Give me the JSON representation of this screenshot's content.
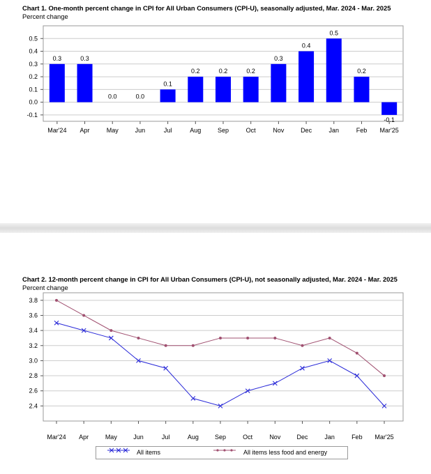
{
  "charts": {
    "c1": {
      "title": "Chart 1. One-month percent change in CPI for All Urban Consumers (CPI-U), seasonally adjusted, Mar. 2024 - Mar. 2025",
      "ylabel": "Percent change"
    },
    "c2": {
      "title": "Chart 2. 12-month percent change in CPI for All Urban Consumers (CPI-U), not seasonally adjusted, Mar. 2024 - Mar. 2025",
      "ylabel": "Percent change",
      "legend": [
        "All items",
        "All items less food and energy"
      ]
    }
  },
  "chart_data": [
    {
      "type": "bar",
      "title": "Chart 1. One-month percent change in CPI for All Urban Consumers (CPI-U), seasonally adjusted, Mar. 2024 - Mar. 2025",
      "ylabel": "Percent change",
      "categories": [
        "Mar'24",
        "Apr",
        "May",
        "Jun",
        "Jul",
        "Aug",
        "Sep",
        "Oct",
        "Nov",
        "Dec",
        "Jan",
        "Feb",
        "Mar'25"
      ],
      "values": [
        0.3,
        0.3,
        0.0,
        0.0,
        0.1,
        0.2,
        0.2,
        0.2,
        0.3,
        0.4,
        0.5,
        0.2,
        -0.1
      ],
      "data_labels": [
        "0.3",
        "0.3",
        "0.0",
        "0.0",
        "0.1",
        "0.2",
        "0.2",
        "0.2",
        "0.3",
        "0.4",
        "0.5",
        "0.2",
        "-0.1"
      ],
      "yticks": [
        "0.5",
        "0.4",
        "0.3",
        "0.2",
        "0.1",
        "0.0",
        "-0.1"
      ],
      "ylim": [
        -0.15,
        0.6
      ],
      "grid": true,
      "bar_color": "#0000ff"
    },
    {
      "type": "line",
      "title": "Chart 2. 12-month percent change in CPI for All Urban Consumers (CPI-U), not seasonally adjusted, Mar. 2024 - Mar. 2025",
      "ylabel": "Percent change",
      "categories": [
        "Mar'24",
        "Apr",
        "May",
        "Jun",
        "Jul",
        "Aug",
        "Sep",
        "Oct",
        "Nov",
        "Dec",
        "Jan",
        "Feb",
        "Mar'25"
      ],
      "series": [
        {
          "name": "All items",
          "values": [
            3.5,
            3.4,
            3.3,
            3.0,
            2.9,
            2.5,
            2.4,
            2.6,
            2.7,
            2.9,
            3.0,
            2.8,
            2.4
          ],
          "color": "#2a2ad8",
          "marker": "x"
        },
        {
          "name": "All items less food and energy",
          "values": [
            3.8,
            3.6,
            3.4,
            3.3,
            3.2,
            3.2,
            3.3,
            3.3,
            3.3,
            3.2,
            3.3,
            3.1,
            2.8
          ],
          "color": "#a05070",
          "marker": "dot"
        }
      ],
      "yticks": [
        "3.8",
        "3.6",
        "3.4",
        "3.2",
        "3.0",
        "2.8",
        "2.6",
        "2.4"
      ],
      "ylim": [
        2.2,
        3.9
      ],
      "grid": true,
      "legend_position": "bottom"
    }
  ]
}
